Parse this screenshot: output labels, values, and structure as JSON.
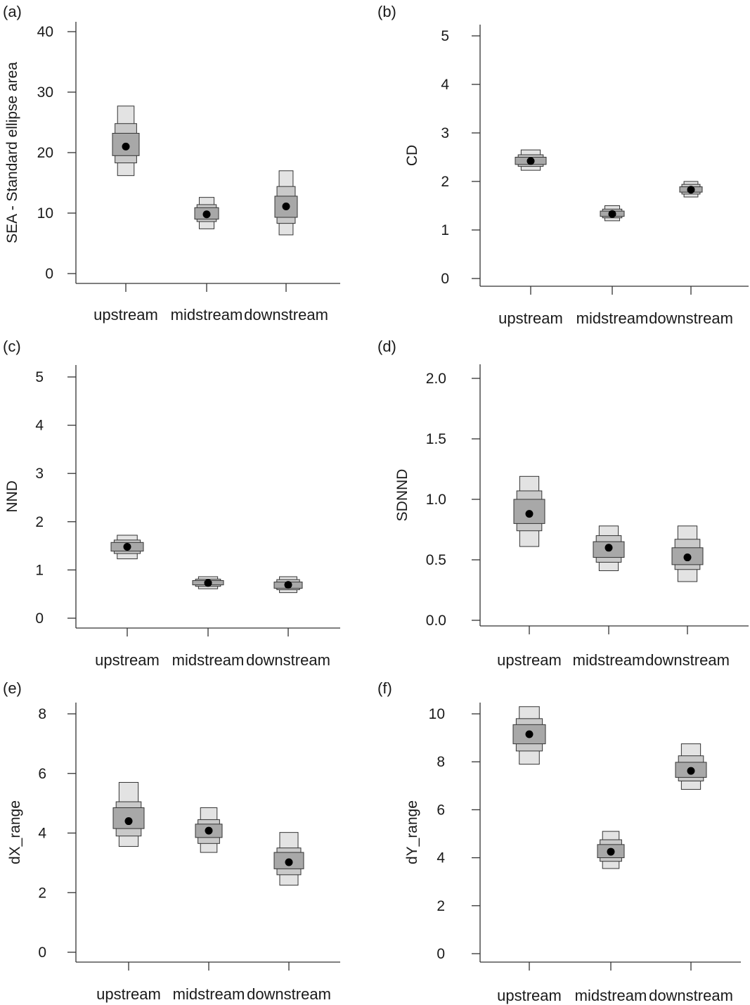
{
  "figure": {
    "box_colors": {
      "outer": "#e3e3e3",
      "middle": "#c9c9c9",
      "inner": "#a8a8a8",
      "edge": "#333333",
      "mode": "#000000"
    }
  },
  "chart_data": [
    {
      "panel_label": "(a)",
      "type": "box",
      "ylabel": "SEA - Standard ellipse area",
      "ylim": [
        0,
        40
      ],
      "yticks": [
        "0",
        "10",
        "20",
        "30",
        "40"
      ],
      "categories": [
        "upstream",
        "midstream",
        "downstream"
      ],
      "series": [
        {
          "category": "upstream",
          "mode": 21,
          "ci50": [
            19.5,
            23.2
          ],
          "ci75": [
            18.3,
            24.8
          ],
          "ci95": [
            16.2,
            27.7
          ]
        },
        {
          "category": "midstream",
          "mode": 9.8,
          "ci50": [
            9,
            10.9
          ],
          "ci75": [
            8.6,
            11.4
          ],
          "ci95": [
            7.4,
            12.6
          ]
        },
        {
          "category": "downstream",
          "mode": 11.1,
          "ci50": [
            9.3,
            12.8
          ],
          "ci75": [
            8.3,
            14.4
          ],
          "ci95": [
            6.4,
            17
          ]
        }
      ]
    },
    {
      "panel_label": "(b)",
      "type": "box",
      "ylabel": "CD",
      "ylim": [
        0,
        5
      ],
      "yticks": [
        "0",
        "1",
        "2",
        "3",
        "4",
        "5"
      ],
      "categories": [
        "upstream",
        "midstream",
        "downstream"
      ],
      "series": [
        {
          "category": "upstream",
          "mode": 2.42,
          "ci50": [
            2.35,
            2.5
          ],
          "ci75": [
            2.31,
            2.55
          ],
          "ci95": [
            2.23,
            2.65
          ]
        },
        {
          "category": "midstream",
          "mode": 1.33,
          "ci50": [
            1.28,
            1.39
          ],
          "ci75": [
            1.25,
            1.43
          ],
          "ci95": [
            1.19,
            1.5
          ]
        },
        {
          "category": "downstream",
          "mode": 1.83,
          "ci50": [
            1.78,
            1.89
          ],
          "ci75": [
            1.74,
            1.94
          ],
          "ci95": [
            1.68,
            2
          ]
        }
      ]
    },
    {
      "panel_label": "(c)",
      "type": "box",
      "ylabel": "NND",
      "ylim": [
        0,
        5
      ],
      "yticks": [
        "0",
        "1",
        "2",
        "3",
        "4",
        "5"
      ],
      "categories": [
        "upstream",
        "midstream",
        "downstream"
      ],
      "series": [
        {
          "category": "upstream",
          "mode": 1.48,
          "ci50": [
            1.39,
            1.57
          ],
          "ci75": [
            1.34,
            1.62
          ],
          "ci95": [
            1.23,
            1.72
          ]
        },
        {
          "category": "midstream",
          "mode": 0.73,
          "ci50": [
            0.69,
            0.78
          ],
          "ci75": [
            0.66,
            0.81
          ],
          "ci95": [
            0.61,
            0.86
          ]
        },
        {
          "category": "downstream",
          "mode": 0.69,
          "ci50": [
            0.62,
            0.75
          ],
          "ci75": [
            0.59,
            0.8
          ],
          "ci95": [
            0.53,
            0.86
          ]
        }
      ]
    },
    {
      "panel_label": "(d)",
      "type": "box",
      "ylabel": "SDNND",
      "ylim": [
        0,
        2
      ],
      "yticks": [
        "0.0",
        "0.5",
        "1.0",
        "1.5",
        "2.0"
      ],
      "categories": [
        "upstream",
        "midstream",
        "downstream"
      ],
      "series": [
        {
          "category": "upstream",
          "mode": 0.88,
          "ci50": [
            0.8,
            1
          ],
          "ci75": [
            0.74,
            1.07
          ],
          "ci95": [
            0.61,
            1.19
          ]
        },
        {
          "category": "midstream",
          "mode": 0.6,
          "ci50": [
            0.52,
            0.65
          ],
          "ci75": [
            0.48,
            0.7
          ],
          "ci95": [
            0.41,
            0.78
          ]
        },
        {
          "category": "downstream",
          "mode": 0.52,
          "ci50": [
            0.46,
            0.6
          ],
          "ci75": [
            0.42,
            0.67
          ],
          "ci95": [
            0.32,
            0.78
          ]
        }
      ]
    },
    {
      "panel_label": "(e)",
      "type": "box",
      "ylabel": "dX_range",
      "ylim": [
        0,
        8
      ],
      "yticks": [
        "0",
        "2",
        "4",
        "6",
        "8"
      ],
      "categories": [
        "upstream",
        "midstream",
        "downstream"
      ],
      "series": [
        {
          "category": "upstream",
          "mode": 4.4,
          "ci50": [
            4.15,
            4.85
          ],
          "ci75": [
            3.9,
            5.05
          ],
          "ci95": [
            3.55,
            5.7
          ]
        },
        {
          "category": "midstream",
          "mode": 4.08,
          "ci50": [
            3.85,
            4.3
          ],
          "ci75": [
            3.65,
            4.45
          ],
          "ci95": [
            3.35,
            4.85
          ]
        },
        {
          "category": "downstream",
          "mode": 3.02,
          "ci50": [
            2.8,
            3.35
          ],
          "ci75": [
            2.6,
            3.5
          ],
          "ci95": [
            2.25,
            4.02
          ]
        }
      ]
    },
    {
      "panel_label": "(f)",
      "type": "box",
      "ylabel": "dY_range",
      "ylim": [
        0,
        10
      ],
      "yticks": [
        "0",
        "2",
        "4",
        "6",
        "8",
        "10"
      ],
      "categories": [
        "upstream",
        "midstream",
        "downstream"
      ],
      "series": [
        {
          "category": "upstream",
          "mode": 9.15,
          "ci50": [
            8.75,
            9.55
          ],
          "ci75": [
            8.45,
            9.8
          ],
          "ci95": [
            7.9,
            10.3
          ]
        },
        {
          "category": "midstream",
          "mode": 4.25,
          "ci50": [
            4,
            4.55
          ],
          "ci75": [
            3.85,
            4.75
          ],
          "ci95": [
            3.55,
            5.1
          ]
        },
        {
          "category": "downstream",
          "mode": 7.62,
          "ci50": [
            7.35,
            7.98
          ],
          "ci75": [
            7.2,
            8.25
          ],
          "ci95": [
            6.85,
            8.75
          ]
        }
      ]
    }
  ]
}
